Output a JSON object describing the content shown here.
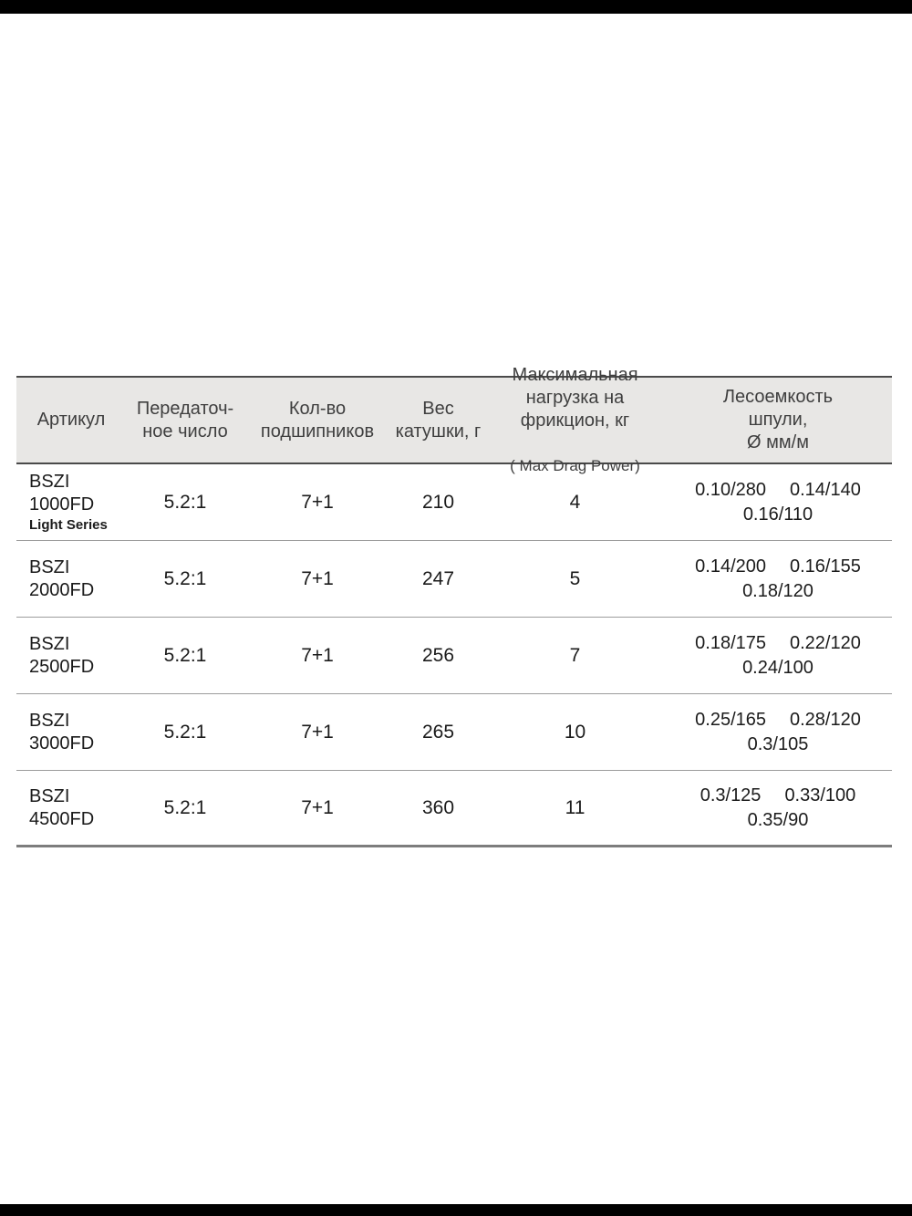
{
  "page": {
    "background_color": "#ffffff",
    "letterbox_color": "#000000"
  },
  "colors": {
    "header_background": "#e8e7e5",
    "header_border": "#4a4a4a",
    "row_divider": "#9c9c9c",
    "table_bottom_border": "#7d7d7d",
    "header_text": "#3f3f3f",
    "body_text": "#1b1b1b"
  },
  "table": {
    "header": {
      "article": "Артикул",
      "gear_ratio": "Передаточ-\nное число",
      "bearings": "Кол-во\nподшипников",
      "weight": "Вес\nкатушки, г",
      "max_drag_main": "Максимальная\nнагрузка на\nфрикцион, кг",
      "max_drag_sub": "( Max Drag Power)",
      "line_capacity": "Лесоемкость\nшпули,\nØ мм/м"
    },
    "rows": [
      {
        "article": "BSZI\n1000FD",
        "article_note": "Light Series",
        "gear_ratio": "5.2:1",
        "bearings": "7+1",
        "weight": "210",
        "max_drag": "4",
        "capacity": [
          "0.10/280",
          "0.14/140",
          "0.16/110"
        ]
      },
      {
        "article": "BSZI\n2000FD",
        "article_note": "",
        "gear_ratio": "5.2:1",
        "bearings": "7+1",
        "weight": "247",
        "max_drag": "5",
        "capacity": [
          "0.14/200",
          "0.16/155",
          "0.18/120"
        ]
      },
      {
        "article": "BSZI\n2500FD",
        "article_note": "",
        "gear_ratio": "5.2:1",
        "bearings": "7+1",
        "weight": "256",
        "max_drag": "7",
        "capacity": [
          "0.18/175",
          "0.22/120",
          "0.24/100"
        ]
      },
      {
        "article": "BSZI\n3000FD",
        "article_note": "",
        "gear_ratio": "5.2:1",
        "bearings": "7+1",
        "weight": "265",
        "max_drag": "10",
        "capacity": [
          "0.25/165",
          "0.28/120",
          "0.3/105"
        ]
      },
      {
        "article": "BSZI\n4500FD",
        "article_note": "",
        "gear_ratio": "5.2:1",
        "bearings": "7+1",
        "weight": "360",
        "max_drag": "11",
        "capacity": [
          "0.3/125",
          "0.33/100",
          "0.35/90"
        ]
      }
    ]
  }
}
